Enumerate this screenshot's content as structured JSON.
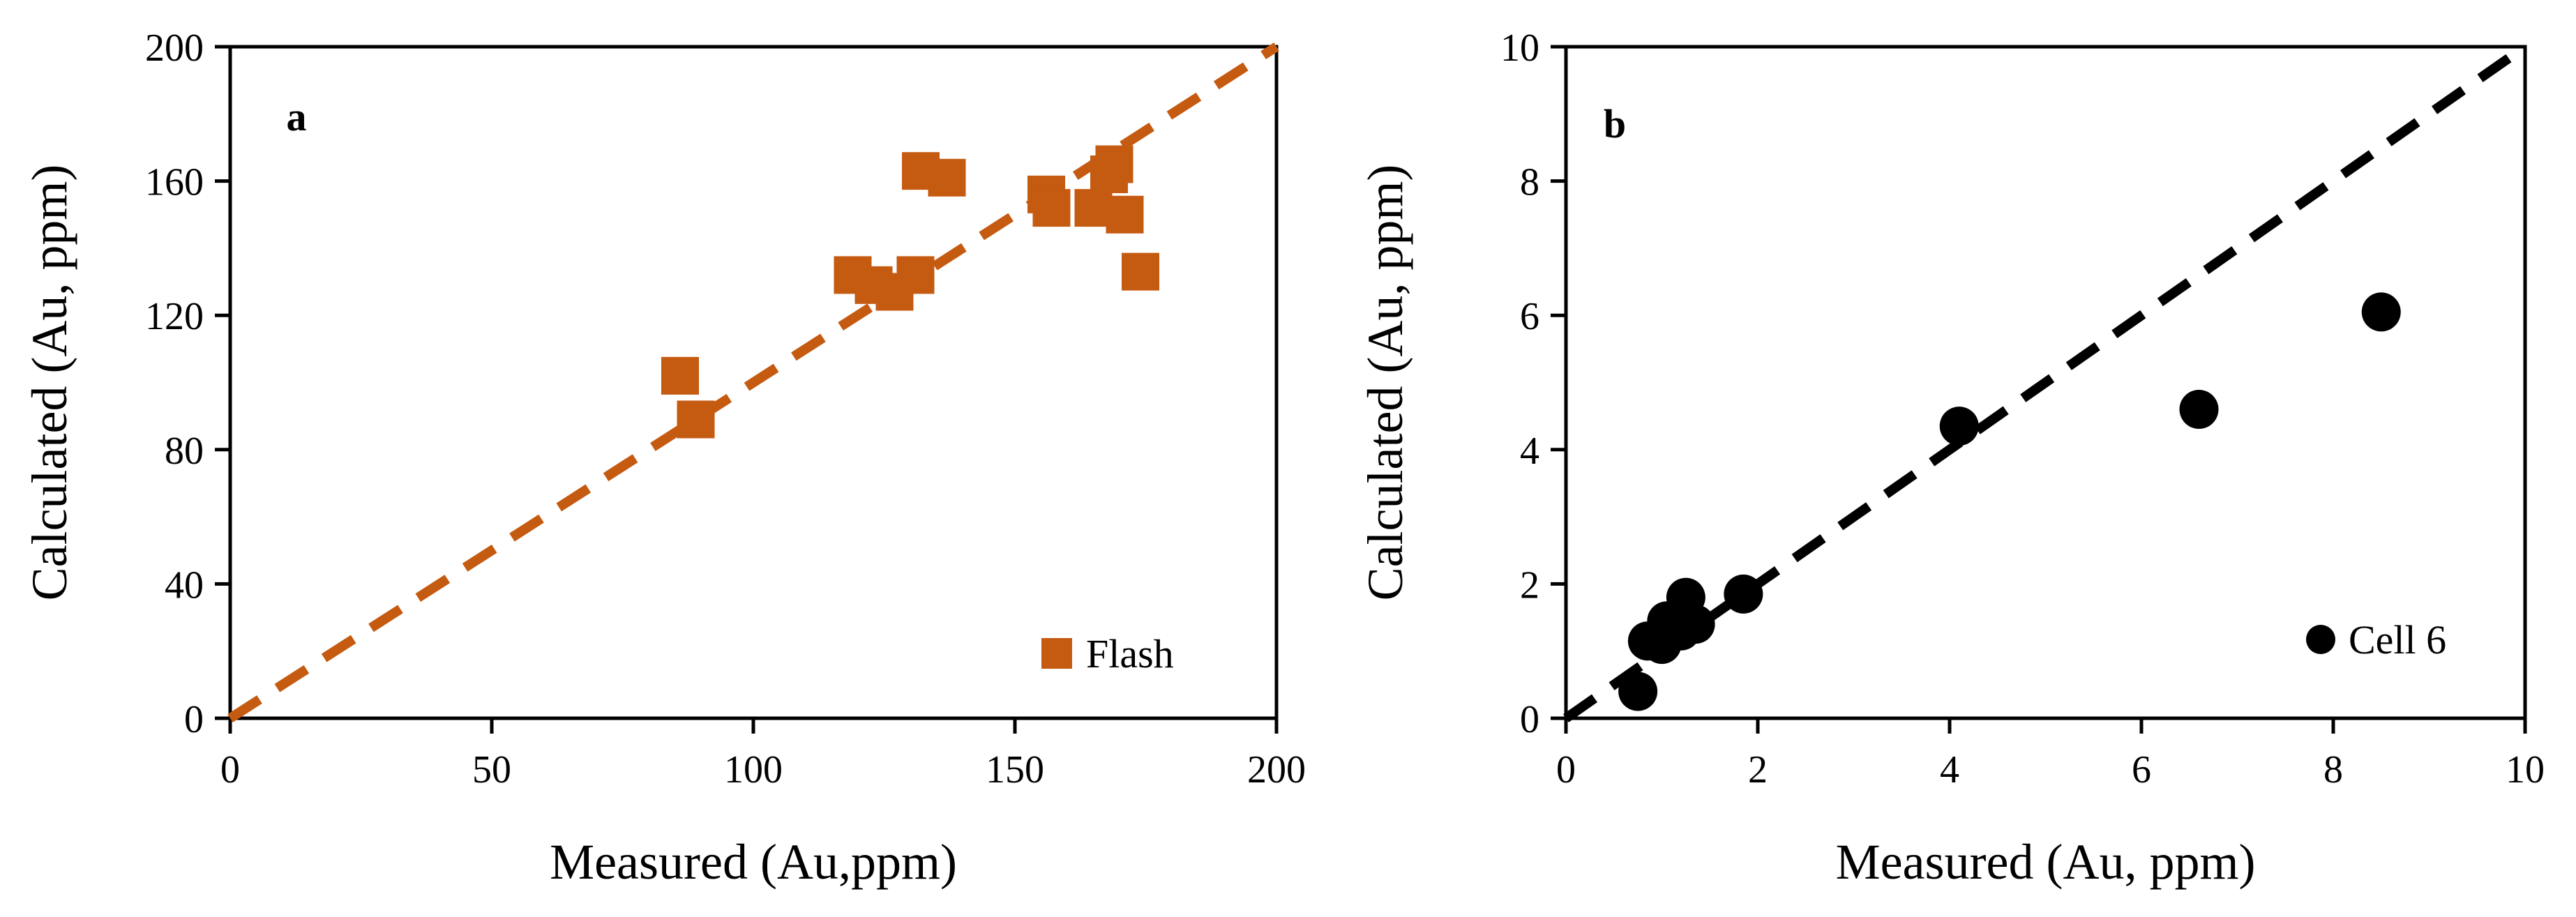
{
  "chart_data": [
    {
      "type": "scatter",
      "panel_label": "a",
      "xlabel": "Measured (Au,ppm)",
      "ylabel": "Calculated (Au, ppm)",
      "xlim": [
        0,
        200
      ],
      "ylim": [
        0,
        200
      ],
      "x_ticks": [
        0,
        50,
        100,
        150,
        200
      ],
      "y_ticks": [
        0,
        40,
        80,
        120,
        160,
        200
      ],
      "grid": false,
      "marker": "square",
      "color": "#C55A11",
      "legend": {
        "label": "Flash",
        "position": "bottom-right"
      },
      "reference_line": {
        "x": [
          0,
          200
        ],
        "y": [
          0,
          200
        ],
        "style": "dashed"
      },
      "series": [
        {
          "name": "Flash",
          "points": [
            {
              "x": 86,
              "y": 102
            },
            {
              "x": 89,
              "y": 89
            },
            {
              "x": 119,
              "y": 132
            },
            {
              "x": 123,
              "y": 129
            },
            {
              "x": 127,
              "y": 127
            },
            {
              "x": 131,
              "y": 132
            },
            {
              "x": 132,
              "y": 163
            },
            {
              "x": 137,
              "y": 161
            },
            {
              "x": 156,
              "y": 156
            },
            {
              "x": 157,
              "y": 152
            },
            {
              "x": 165,
              "y": 152
            },
            {
              "x": 168,
              "y": 162
            },
            {
              "x": 169,
              "y": 165
            },
            {
              "x": 171,
              "y": 150
            },
            {
              "x": 174,
              "y": 133
            }
          ]
        }
      ]
    },
    {
      "type": "scatter",
      "panel_label": "b",
      "xlabel": "Measured (Au, ppm)",
      "ylabel": "Calculated (Au, ppm)",
      "xlim": [
        0,
        10
      ],
      "ylim": [
        0,
        10
      ],
      "x_ticks": [
        0,
        2,
        4,
        6,
        8,
        10
      ],
      "y_ticks": [
        0,
        2,
        4,
        6,
        8,
        10
      ],
      "grid": false,
      "marker": "circle",
      "color": "#000000",
      "legend": {
        "label": "Cell 6",
        "position": "bottom-right"
      },
      "reference_line": {
        "x": [
          0,
          10
        ],
        "y": [
          0,
          10
        ],
        "style": "dashed"
      },
      "series": [
        {
          "name": "Cell 6",
          "points": [
            {
              "x": 0.75,
              "y": 0.4
            },
            {
              "x": 0.85,
              "y": 1.15
            },
            {
              "x": 1.0,
              "y": 1.1
            },
            {
              "x": 1.05,
              "y": 1.45
            },
            {
              "x": 1.2,
              "y": 1.3
            },
            {
              "x": 1.25,
              "y": 1.8
            },
            {
              "x": 1.35,
              "y": 1.4
            },
            {
              "x": 1.85,
              "y": 1.85
            },
            {
              "x": 4.1,
              "y": 4.35
            },
            {
              "x": 6.6,
              "y": 4.6
            },
            {
              "x": 8.5,
              "y": 6.05
            }
          ]
        }
      ]
    }
  ]
}
